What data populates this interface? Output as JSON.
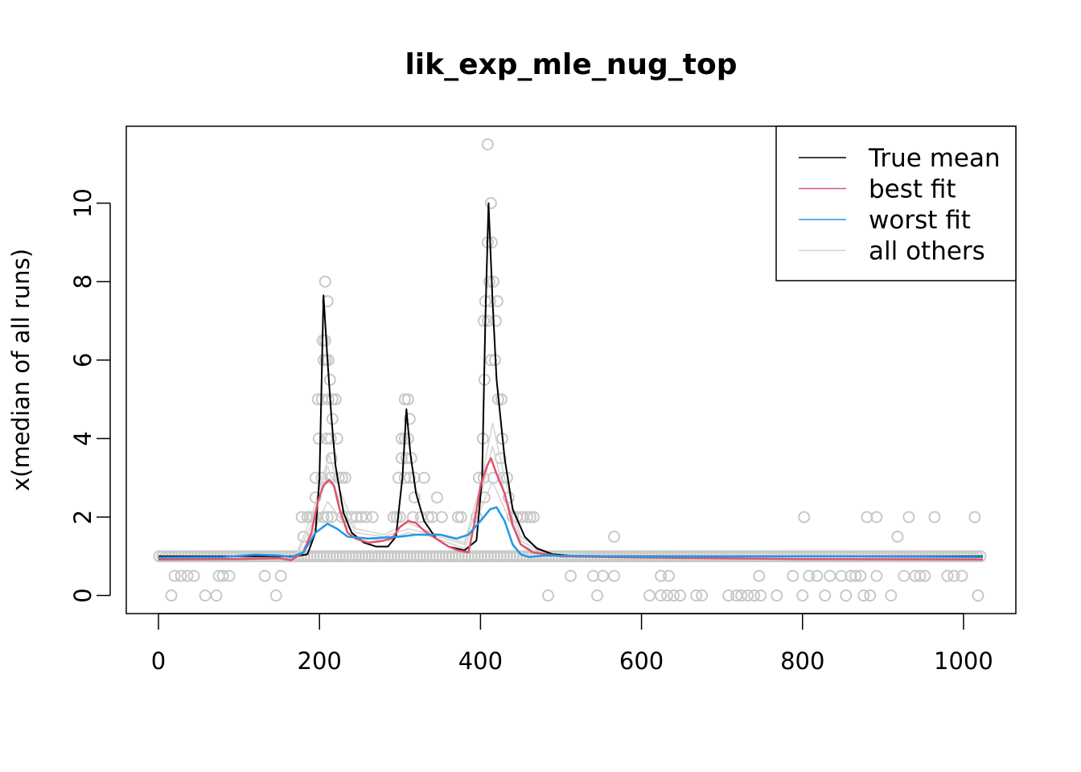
{
  "chart_data": {
    "type": "line",
    "title": "lik_exp_mle_nug_top",
    "xlabel": "",
    "ylabel": "x(median of all runs)",
    "xlim": [
      -40,
      1065
    ],
    "ylim": [
      -0.46,
      11.96
    ],
    "xticks": [
      0,
      200,
      400,
      600,
      800,
      1000
    ],
    "yticks": [
      0,
      2,
      4,
      6,
      8,
      10
    ],
    "grid": false,
    "legend": {
      "placement": "top-right",
      "entries": [
        {
          "label": "True mean",
          "color": "#000000"
        },
        {
          "label": "best fit",
          "color": "#DF536B"
        },
        {
          "label": "worst fit",
          "color": "#2297E6"
        },
        {
          "label": "all others",
          "color": "#D3D3D3"
        }
      ]
    },
    "points_color": "#C8C8C8",
    "baseline_points": {
      "y": 1,
      "x_from": 1,
      "x_to": 1024,
      "step": 4
    },
    "points": [
      [
        207,
        8
      ],
      [
        210,
        7.5
      ],
      [
        204,
        6.5
      ],
      [
        207,
        6.5
      ],
      [
        205,
        6
      ],
      [
        208,
        6
      ],
      [
        211,
        6
      ],
      [
        213,
        5.5
      ],
      [
        198,
        5
      ],
      [
        203,
        5
      ],
      [
        211,
        5
      ],
      [
        216,
        5
      ],
      [
        220,
        5
      ],
      [
        216,
        4.5
      ],
      [
        199,
        4
      ],
      [
        209,
        4
      ],
      [
        214,
        4
      ],
      [
        222,
        4
      ],
      [
        215,
        3.5
      ],
      [
        195,
        3
      ],
      [
        203,
        3
      ],
      [
        214,
        3
      ],
      [
        224,
        3
      ],
      [
        228,
        3
      ],
      [
        232,
        3
      ],
      [
        195,
        2.5
      ],
      [
        178,
        2
      ],
      [
        185,
        2
      ],
      [
        188,
        2
      ],
      [
        192,
        2
      ],
      [
        196,
        2
      ],
      [
        205,
        2
      ],
      [
        210,
        2
      ],
      [
        215,
        2
      ],
      [
        228,
        2
      ],
      [
        233,
        2
      ],
      [
        240,
        2
      ],
      [
        246,
        2
      ],
      [
        252,
        2
      ],
      [
        258,
        2
      ],
      [
        266,
        2
      ],
      [
        180,
        1.5
      ],
      [
        306,
        5
      ],
      [
        310,
        5
      ],
      [
        312,
        4.5
      ],
      [
        302,
        4
      ],
      [
        306,
        4
      ],
      [
        310,
        4
      ],
      [
        302,
        3.5
      ],
      [
        308,
        3.5
      ],
      [
        314,
        3.5
      ],
      [
        298,
        3
      ],
      [
        306,
        3
      ],
      [
        312,
        3
      ],
      [
        318,
        3
      ],
      [
        330,
        3
      ],
      [
        318,
        2.5
      ],
      [
        346,
        2.5
      ],
      [
        292,
        2
      ],
      [
        296,
        2
      ],
      [
        300,
        2
      ],
      [
        316,
        2
      ],
      [
        326,
        2
      ],
      [
        335,
        2
      ],
      [
        340,
        2
      ],
      [
        352,
        2
      ],
      [
        372,
        2
      ],
      [
        376,
        2
      ],
      [
        409,
        11.5
      ],
      [
        413,
        10
      ],
      [
        409,
        9
      ],
      [
        414,
        9
      ],
      [
        411,
        8
      ],
      [
        416,
        8
      ],
      [
        406,
        7.5
      ],
      [
        412,
        7.5
      ],
      [
        421,
        7.5
      ],
      [
        404,
        7
      ],
      [
        409,
        7
      ],
      [
        419,
        7
      ],
      [
        413,
        6
      ],
      [
        418,
        6
      ],
      [
        405,
        5.5
      ],
      [
        422,
        5
      ],
      [
        426,
        5
      ],
      [
        403,
        4
      ],
      [
        427,
        4
      ],
      [
        425,
        3.5
      ],
      [
        398,
        3
      ],
      [
        404,
        3
      ],
      [
        416,
        3
      ],
      [
        428,
        3
      ],
      [
        433,
        3
      ],
      [
        405,
        2.5
      ],
      [
        435,
        2.5
      ],
      [
        395,
        2
      ],
      [
        440,
        2
      ],
      [
        445,
        2
      ],
      [
        452,
        2
      ],
      [
        458,
        2
      ],
      [
        462,
        2
      ],
      [
        466,
        2
      ],
      [
        16,
        0
      ],
      [
        58,
        0
      ],
      [
        72,
        0
      ],
      [
        146,
        0
      ],
      [
        484,
        0
      ],
      [
        545,
        0
      ],
      [
        610,
        0
      ],
      [
        624,
        0
      ],
      [
        632,
        0
      ],
      [
        640,
        0
      ],
      [
        648,
        0
      ],
      [
        668,
        0
      ],
      [
        675,
        0
      ],
      [
        708,
        0
      ],
      [
        718,
        0
      ],
      [
        724,
        0
      ],
      [
        732,
        0
      ],
      [
        740,
        0
      ],
      [
        748,
        0
      ],
      [
        768,
        0
      ],
      [
        800,
        0
      ],
      [
        828,
        0
      ],
      [
        854,
        0
      ],
      [
        876,
        0
      ],
      [
        884,
        0
      ],
      [
        910,
        0
      ],
      [
        1018,
        0
      ],
      [
        20,
        0.5
      ],
      [
        28,
        0.5
      ],
      [
        36,
        0.5
      ],
      [
        44,
        0.5
      ],
      [
        75,
        0.5
      ],
      [
        80,
        0.5
      ],
      [
        88,
        0.5
      ],
      [
        132,
        0.5
      ],
      [
        152,
        0.5
      ],
      [
        512,
        0.5
      ],
      [
        540,
        0.5
      ],
      [
        552,
        0.5
      ],
      [
        566,
        0.5
      ],
      [
        624,
        0.5
      ],
      [
        634,
        0.5
      ],
      [
        746,
        0.5
      ],
      [
        788,
        0.5
      ],
      [
        808,
        0.5
      ],
      [
        818,
        0.5
      ],
      [
        834,
        0.5
      ],
      [
        848,
        0.5
      ],
      [
        860,
        0.5
      ],
      [
        866,
        0.5
      ],
      [
        872,
        0.5
      ],
      [
        892,
        0.5
      ],
      [
        926,
        0.5
      ],
      [
        940,
        0.5
      ],
      [
        946,
        0.5
      ],
      [
        952,
        0.5
      ],
      [
        980,
        0.5
      ],
      [
        988,
        0.5
      ],
      [
        998,
        0.5
      ],
      [
        566,
        1.5
      ],
      [
        918,
        1.5
      ],
      [
        802,
        2
      ],
      [
        880,
        2
      ],
      [
        892,
        2
      ],
      [
        932,
        2
      ],
      [
        964,
        2
      ],
      [
        1014,
        2
      ]
    ],
    "series": [
      {
        "name": "all others",
        "color": "#D3D3D3",
        "points": [
          [
            0,
            1
          ],
          [
            170,
            0.95
          ],
          [
            190,
            1.8
          ],
          [
            210,
            3.3
          ],
          [
            225,
            2.4
          ],
          [
            245,
            1.6
          ],
          [
            280,
            1.5
          ],
          [
            310,
            1.7
          ],
          [
            340,
            1.55
          ],
          [
            380,
            1.3
          ],
          [
            400,
            2.5
          ],
          [
            415,
            3.8
          ],
          [
            430,
            2.6
          ],
          [
            450,
            1.4
          ],
          [
            480,
            1.05
          ],
          [
            600,
            1
          ],
          [
            1024,
            1
          ]
        ]
      },
      {
        "name": "all others",
        "color": "#D3D3D3",
        "points": [
          [
            0,
            0.95
          ],
          [
            170,
            0.9
          ],
          [
            190,
            1.5
          ],
          [
            210,
            2.4
          ],
          [
            225,
            2
          ],
          [
            245,
            1.5
          ],
          [
            280,
            1.4
          ],
          [
            310,
            1.6
          ],
          [
            340,
            1.5
          ],
          [
            380,
            1.2
          ],
          [
            400,
            2.2
          ],
          [
            415,
            2.9
          ],
          [
            430,
            2.2
          ],
          [
            450,
            1.3
          ],
          [
            480,
            1.0
          ],
          [
            600,
            0.98
          ],
          [
            1024,
            0.97
          ]
        ]
      },
      {
        "name": "all others",
        "color": "#D3D3D3",
        "points": [
          [
            0,
            1.02
          ],
          [
            170,
            1
          ],
          [
            190,
            2
          ],
          [
            212,
            3.6
          ],
          [
            225,
            2.7
          ],
          [
            245,
            1.7
          ],
          [
            280,
            1.55
          ],
          [
            310,
            1.85
          ],
          [
            340,
            1.6
          ],
          [
            380,
            1.35
          ],
          [
            400,
            2.8
          ],
          [
            415,
            4.4
          ],
          [
            430,
            3
          ],
          [
            450,
            1.5
          ],
          [
            480,
            1.1
          ],
          [
            600,
            1.02
          ],
          [
            1024,
            1.02
          ]
        ]
      },
      {
        "name": "True mean",
        "color": "#000000",
        "points": [
          [
            0,
            1
          ],
          [
            170,
            1
          ],
          [
            185,
            1.05
          ],
          [
            195,
            1.6
          ],
          [
            200,
            3
          ],
          [
            205,
            7.65
          ],
          [
            210,
            6
          ],
          [
            215,
            4.5
          ],
          [
            220,
            3.3
          ],
          [
            230,
            2.1
          ],
          [
            240,
            1.6
          ],
          [
            255,
            1.35
          ],
          [
            270,
            1.25
          ],
          [
            285,
            1.25
          ],
          [
            295,
            1.5
          ],
          [
            303,
            3
          ],
          [
            308,
            4.75
          ],
          [
            313,
            3.6
          ],
          [
            320,
            2.6
          ],
          [
            330,
            1.9
          ],
          [
            345,
            1.45
          ],
          [
            360,
            1.25
          ],
          [
            380,
            1.15
          ],
          [
            395,
            1.4
          ],
          [
            402,
            3
          ],
          [
            406,
            7
          ],
          [
            410,
            10
          ],
          [
            415,
            7.5
          ],
          [
            420,
            5.5
          ],
          [
            430,
            3.5
          ],
          [
            440,
            2.2
          ],
          [
            455,
            1.5
          ],
          [
            470,
            1.2
          ],
          [
            490,
            1.05
          ],
          [
            520,
            1
          ],
          [
            1024,
            1
          ]
        ]
      },
      {
        "name": "best fit",
        "color": "#DF536B",
        "points": [
          [
            0,
            0.92
          ],
          [
            100,
            0.93
          ],
          [
            150,
            0.95
          ],
          [
            165,
            0.9
          ],
          [
            180,
            1.1
          ],
          [
            190,
            1.6
          ],
          [
            198,
            2.4
          ],
          [
            205,
            2.8
          ],
          [
            212,
            2.95
          ],
          [
            218,
            2.8
          ],
          [
            225,
            2.2
          ],
          [
            235,
            1.6
          ],
          [
            245,
            1.45
          ],
          [
            260,
            1.35
          ],
          [
            275,
            1.38
          ],
          [
            290,
            1.45
          ],
          [
            300,
            1.75
          ],
          [
            310,
            1.9
          ],
          [
            320,
            1.85
          ],
          [
            330,
            1.65
          ],
          [
            345,
            1.45
          ],
          [
            360,
            1.25
          ],
          [
            372,
            1.15
          ],
          [
            385,
            1.1
          ],
          [
            392,
            1.8
          ],
          [
            400,
            2.8
          ],
          [
            408,
            3.3
          ],
          [
            413,
            3.5
          ],
          [
            420,
            3.1
          ],
          [
            430,
            2.6
          ],
          [
            440,
            1.8
          ],
          [
            450,
            1.3
          ],
          [
            465,
            1.1
          ],
          [
            500,
            1
          ],
          [
            600,
            0.97
          ],
          [
            800,
            0.93
          ],
          [
            1024,
            0.92
          ]
        ]
      },
      {
        "name": "worst fit",
        "color": "#2297E6",
        "points": [
          [
            0,
            0.97
          ],
          [
            80,
            0.98
          ],
          [
            120,
            1.04
          ],
          [
            150,
            1.02
          ],
          [
            165,
            0.98
          ],
          [
            180,
            1.1
          ],
          [
            195,
            1.6
          ],
          [
            210,
            1.83
          ],
          [
            222,
            1.7
          ],
          [
            235,
            1.5
          ],
          [
            260,
            1.45
          ],
          [
            300,
            1.5
          ],
          [
            320,
            1.55
          ],
          [
            350,
            1.55
          ],
          [
            370,
            1.45
          ],
          [
            385,
            1.55
          ],
          [
            400,
            1.9
          ],
          [
            412,
            2.2
          ],
          [
            420,
            2.25
          ],
          [
            430,
            1.9
          ],
          [
            440,
            1.3
          ],
          [
            450,
            1.05
          ],
          [
            460,
            0.98
          ],
          [
            480,
            1.02
          ],
          [
            600,
            0.99
          ],
          [
            700,
            1
          ],
          [
            850,
            1
          ],
          [
            1024,
            0.98
          ]
        ]
      }
    ]
  }
}
